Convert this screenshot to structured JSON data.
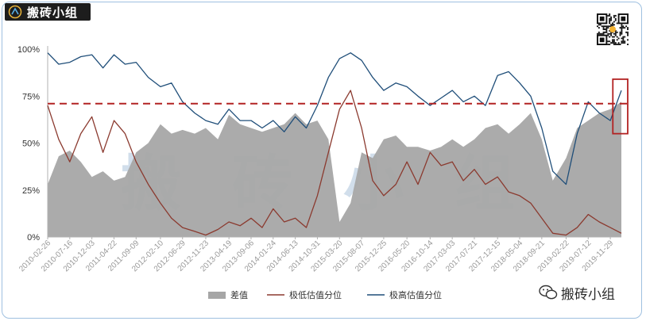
{
  "branding": {
    "logo_text": "搬砖小组",
    "watermark_text": "搬砖小组",
    "qr_icon": "qr-code-icon",
    "wechat_icon": "wechat-icon"
  },
  "chart_data": {
    "type": "area",
    "title": "",
    "xlabel": "",
    "ylabel": "",
    "ylim": [
      0,
      100
    ],
    "yticks": [
      "0%",
      "25%",
      "50%",
      "75%",
      "100%"
    ],
    "ytick_values": [
      0,
      25,
      50,
      75,
      100
    ],
    "grid": false,
    "legend_position": "bottom",
    "watermark": "搬砖小组",
    "reference_line": {
      "value": 71,
      "color": "#b22222",
      "style": "dashed"
    },
    "highlight_box": {
      "x_from": "2019-12-15",
      "x_to": "2020-02-26",
      "y_from": 55,
      "y_to": 84,
      "color": "#b22222"
    },
    "x_tick_labels": [
      "2010-02-26",
      "2010-07-16",
      "2010-12-03",
      "2011-04-22",
      "2011-09-09",
      "2012-02-10",
      "2012-06-29",
      "2012-11-23",
      "2013-04-19",
      "2013-09-06",
      "2014-01-24",
      "2014-06-13",
      "2014-10-31",
      "2015-03-20",
      "2015-08-07",
      "2015-12-25",
      "2016-05-20",
      "2016-10-14",
      "2017-03-03",
      "2017-07-21",
      "2017-12-15",
      "2018-05-04",
      "2018-09-21",
      "2019-02-22",
      "2019-07-12",
      "2019-11-29"
    ],
    "x": [
      "2010-02-26",
      "2010-05-07",
      "2010-07-16",
      "2010-09-24",
      "2010-12-03",
      "2011-02-11",
      "2011-04-22",
      "2011-07-01",
      "2011-09-09",
      "2011-11-25",
      "2012-02-10",
      "2012-04-20",
      "2012-06-29",
      "2012-09-14",
      "2012-11-23",
      "2013-02-08",
      "2013-04-19",
      "2013-06-28",
      "2013-09-06",
      "2013-11-15",
      "2014-01-24",
      "2014-04-04",
      "2014-06-13",
      "2014-08-22",
      "2014-10-31",
      "2015-01-09",
      "2015-03-20",
      "2015-05-29",
      "2015-08-07",
      "2015-10-16",
      "2015-12-25",
      "2016-03-11",
      "2016-05-20",
      "2016-07-29",
      "2016-10-14",
      "2016-12-23",
      "2017-03-03",
      "2017-05-12",
      "2017-07-21",
      "2017-09-29",
      "2017-12-15",
      "2018-02-23",
      "2018-05-04",
      "2018-07-13",
      "2018-09-21",
      "2018-11-30",
      "2019-02-22",
      "2019-05-03",
      "2019-07-12",
      "2019-09-20",
      "2019-11-29",
      "2020-02-07"
    ],
    "series": [
      {
        "name": "差值",
        "type": "area",
        "color": "#a6a6a6",
        "values": [
          28,
          43,
          46,
          40,
          32,
          35,
          30,
          32,
          45,
          50,
          60,
          55,
          57,
          55,
          58,
          52,
          65,
          60,
          58,
          56,
          58,
          60,
          66,
          60,
          62,
          52,
          8,
          18,
          45,
          42,
          52,
          54,
          48,
          48,
          46,
          48,
          52,
          48,
          52,
          58,
          60,
          55,
          60,
          66,
          52,
          30,
          42,
          58,
          62,
          66,
          68,
          72
        ]
      },
      {
        "name": "极低估值分位",
        "type": "line",
        "color": "#8b3a2f",
        "values": [
          70,
          52,
          40,
          55,
          64,
          45,
          62,
          55,
          40,
          28,
          18,
          10,
          5,
          3,
          1,
          4,
          8,
          6,
          10,
          5,
          15,
          8,
          10,
          5,
          22,
          45,
          68,
          78,
          58,
          30,
          22,
          28,
          40,
          28,
          45,
          38,
          40,
          30,
          36,
          28,
          32,
          24,
          22,
          18,
          10,
          2,
          1,
          5,
          12,
          8,
          5,
          2
        ]
      },
      {
        "name": "极高估值分位",
        "type": "line",
        "color": "#1f4e79",
        "values": [
          98,
          92,
          93,
          96,
          97,
          90,
          97,
          92,
          93,
          85,
          80,
          82,
          72,
          66,
          62,
          60,
          68,
          62,
          62,
          58,
          62,
          56,
          64,
          58,
          70,
          85,
          95,
          98,
          94,
          85,
          78,
          82,
          80,
          75,
          70,
          74,
          78,
          72,
          75,
          70,
          86,
          88,
          82,
          75,
          58,
          35,
          28,
          55,
          72,
          66,
          62,
          78
        ]
      }
    ]
  }
}
